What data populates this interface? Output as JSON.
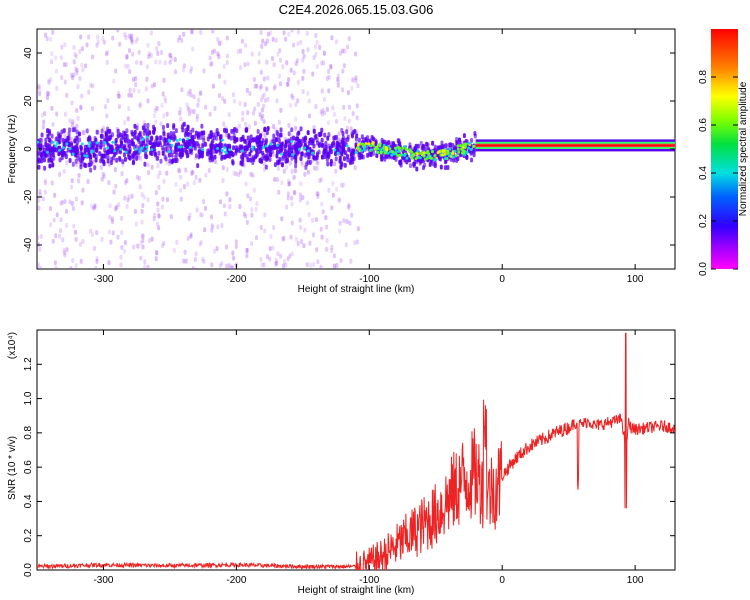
{
  "title": "C2E4.2026.065.15.03.G06",
  "chart_data": [
    {
      "type": "heatmap",
      "xlabel": "Height of straight line (km)",
      "ylabel": "Frequency (Hz)",
      "xlim": [
        -350,
        130
      ],
      "ylim": [
        -50,
        50
      ],
      "x_ticks": [
        "-300",
        "-200",
        "-100",
        "0",
        "100"
      ],
      "y_ticks": [
        "-40",
        "-20",
        "0",
        "20",
        "40"
      ],
      "colorbar": {
        "label": "Normalized spectral amplitude",
        "range": [
          0,
          1
        ],
        "ticks": [
          "0.0",
          "0.2",
          "0.4",
          "0.6",
          "0.8"
        ],
        "colormap": "rainbow (magenta-blue-cyan-green-yellow-red)"
      },
      "signal_track": [
        {
          "x": -350,
          "y": 0
        },
        {
          "x": -300,
          "y": 0
        },
        {
          "x": -270,
          "y": 2
        },
        {
          "x": -200,
          "y": 1
        },
        {
          "x": -110,
          "y": 0
        },
        {
          "x": -100,
          "y": 1
        },
        {
          "x": -80,
          "y": -1
        },
        {
          "x": -60,
          "y": -3
        },
        {
          "x": -40,
          "y": -2
        },
        {
          "x": -30,
          "y": 0
        },
        {
          "x": -20,
          "y": 1
        },
        {
          "x": 0,
          "y": 1
        },
        {
          "x": 50,
          "y": 1
        },
        {
          "x": 85,
          "y": 2
        },
        {
          "x": 130,
          "y": 2
        }
      ],
      "colors": {
        "noise": "#a855f7",
        "core": "#5b00f0",
        "mid": "#00e0e0",
        "peak": "#ff3030"
      }
    },
    {
      "type": "line",
      "xlabel": "Height of straight line (km)",
      "ylabel": "SNR (10 * v/v)",
      "y_multiplier": "(x10⁴)",
      "xlim": [
        -350,
        130
      ],
      "ylim": [
        0,
        1.4
      ],
      "x_ticks": [
        "-300",
        "-200",
        "-100",
        "0",
        "100"
      ],
      "y_ticks": [
        "0.0",
        "0.2",
        "0.4",
        "0.6",
        "0.8",
        "1.0",
        "1.2"
      ],
      "series_color": "#ee2222",
      "x": [
        -350,
        -300,
        -250,
        -200,
        -150,
        -110,
        -100,
        -90,
        -80,
        -70,
        -60,
        -50,
        -40,
        -30,
        -20,
        -15,
        -10,
        -5,
        0,
        10,
        20,
        30,
        40,
        50,
        55,
        60,
        65,
        70,
        80,
        90,
        93,
        95,
        97,
        100,
        110,
        120,
        130
      ],
      "y": [
        0.02,
        0.03,
        0.025,
        0.03,
        0.02,
        0.02,
        0.04,
        0.08,
        0.14,
        0.2,
        0.26,
        0.32,
        0.42,
        0.52,
        0.56,
        0.5,
        0.45,
        0.48,
        0.55,
        0.65,
        0.72,
        0.76,
        0.8,
        0.83,
        0.86,
        0.85,
        0.87,
        0.84,
        0.86,
        0.88,
        0.7,
        0.86,
        0.83,
        0.82,
        0.83,
        0.84,
        0.83
      ]
    }
  ]
}
